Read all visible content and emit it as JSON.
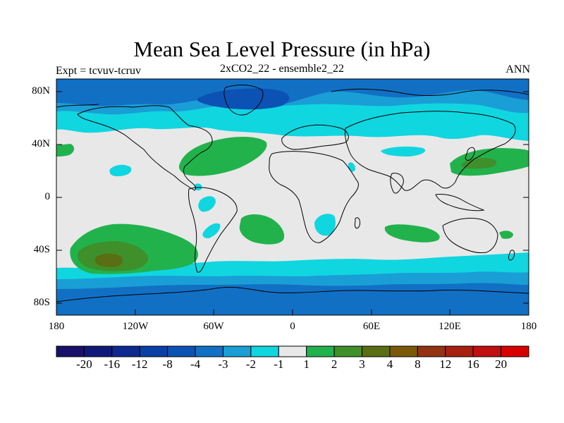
{
  "title": "Mean Sea Level Pressure (in hPa)",
  "subtitle_left": "Expt = tcvuv-tcruv",
  "subtitle_center": "2xCO2_22 - ensemble2_22",
  "subtitle_right": "ANN",
  "lat_ticks": [
    "80N",
    "40N",
    "0",
    "40S",
    "80S"
  ],
  "lon_ticks": [
    "180",
    "120W",
    "60W",
    "0",
    "60E",
    "120E",
    "180"
  ],
  "colorbar": {
    "labels": [
      "-20",
      "-16",
      "-12",
      "-8",
      "-4",
      "-3",
      "-2",
      "-1",
      "1",
      "2",
      "3",
      "4",
      "8",
      "12",
      "16",
      "20"
    ],
    "colors": [
      "#1a0f6b",
      "#10197a",
      "#0e2a90",
      "#0a3fa6",
      "#0b52b4",
      "#1170c4",
      "#1a9ed6",
      "#10d6e0",
      "#e8e8e8",
      "#22b24c",
      "#3f8f2a",
      "#5a6e13",
      "#7a5a0a",
      "#933312",
      "#a8200f",
      "#c01010",
      "#d80000"
    ]
  },
  "regions": [
    {
      "name": "arctic-low",
      "level": "-3",
      "color": "#1170c4"
    },
    {
      "name": "antarctic-low",
      "level": "-3",
      "color": "#1170c4"
    },
    {
      "name": "south-pacific-high",
      "level": "4",
      "color": "#5a6e13"
    },
    {
      "name": "north-pacific-high",
      "level": "3",
      "color": "#3f8f2a"
    }
  ]
}
